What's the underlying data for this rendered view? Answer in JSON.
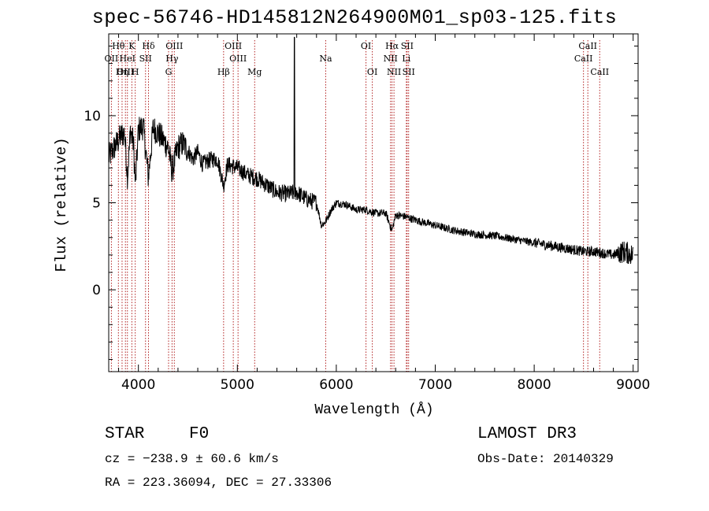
{
  "chart_data": {
    "type": "line",
    "title": "spec-56746-HD145812N264900M01_sp03-125.fits",
    "xlabel": "Wavelength (Å)",
    "ylabel": "Flux (relative)",
    "xlim": [
      3700,
      9050
    ],
    "ylim": [
      -4.7,
      14.7
    ],
    "xticks": [
      4000,
      5000,
      6000,
      7000,
      8000,
      9000
    ],
    "xtick_labels": [
      "4000",
      "5000",
      "6000",
      "7000",
      "8000",
      "9000"
    ],
    "yticks": [
      0,
      5,
      10
    ],
    "ytick_labels": [
      "0",
      "5",
      "10"
    ],
    "series": [
      {
        "name": "spectrum",
        "x": [
          3700,
          3760,
          3800,
          3830,
          3860,
          3890,
          3920,
          3950,
          3970,
          4000,
          4050,
          4100,
          4150,
          4200,
          4250,
          4300,
          4340,
          4400,
          4450,
          4500,
          4550,
          4600,
          4650,
          4700,
          4750,
          4800,
          4861,
          4900,
          4950,
          5000,
          5100,
          5200,
          5300,
          5400,
          5500,
          5600,
          5700,
          5800,
          5850,
          5890,
          5950,
          6000,
          6100,
          6200,
          6300,
          6400,
          6500,
          6563,
          6600,
          6700,
          6800,
          7000,
          7200,
          7400,
          7600,
          7800,
          7900,
          8000,
          8100,
          8200,
          8300,
          8400,
          8500,
          8600,
          8700,
          8800,
          8900,
          9000
        ],
        "values": [
          7.6,
          8.2,
          8.6,
          8.9,
          9.0,
          6.5,
          9.2,
          8.4,
          6.0,
          9.2,
          9.4,
          6.5,
          9.3,
          9.0,
          8.6,
          8.2,
          6.8,
          8.2,
          8.4,
          8.0,
          7.5,
          7.9,
          7.2,
          7.4,
          7.5,
          7.5,
          6.0,
          7.2,
          7.1,
          7.0,
          6.6,
          6.4,
          6.0,
          5.6,
          5.5,
          5.6,
          5.2,
          5.0,
          3.7,
          3.9,
          4.6,
          5.0,
          4.9,
          4.6,
          4.6,
          4.4,
          4.4,
          3.4,
          4.3,
          4.2,
          4.0,
          3.7,
          3.4,
          3.2,
          3.1,
          2.9,
          2.8,
          2.7,
          2.6,
          2.5,
          2.4,
          2.3,
          2.2,
          2.2,
          2.1,
          2.0,
          2.2,
          2.0
        ]
      }
    ],
    "lines": [
      {
        "label": "Hθ",
        "wl": 3798,
        "row": 1
      },
      {
        "label": "K",
        "wl": 3934,
        "row": 1
      },
      {
        "label": "Hδ",
        "wl": 4102,
        "row": 1
      },
      {
        "label": "OIII",
        "wl": 4363,
        "row": 1
      },
      {
        "label": "OIII",
        "wl": 4959,
        "row": 1
      },
      {
        "label": "OI",
        "wl": 6300,
        "row": 1
      },
      {
        "label": "Hα",
        "wl": 6563,
        "row": 1
      },
      {
        "label": "SII",
        "wl": 6716,
        "row": 1
      },
      {
        "label": "CaII",
        "wl": 8542,
        "row": 1
      },
      {
        "label": "OII",
        "wl": 3727,
        "row": 2
      },
      {
        "label": "HeI",
        "wl": 3889,
        "row": 2
      },
      {
        "label": "SII",
        "wl": 4072,
        "row": 2
      },
      {
        "label": "Hγ",
        "wl": 4340,
        "row": 2
      },
      {
        "label": "OIII",
        "wl": 5007,
        "row": 2
      },
      {
        "label": "Na",
        "wl": 5893,
        "row": 2
      },
      {
        "label": "NII",
        "wl": 6548,
        "row": 2
      },
      {
        "label": "Li",
        "wl": 6708,
        "row": 2
      },
      {
        "label": "CaII",
        "wl": 8498,
        "row": 2
      },
      {
        "label": "OIII",
        "wl": 3869,
        "row": 3
      },
      {
        "label": "Hη",
        "wl": 3835,
        "row": 3
      },
      {
        "label": "H",
        "wl": 3968,
        "row": 3
      },
      {
        "label": "G",
        "wl": 4305,
        "row": 3
      },
      {
        "label": "Hβ",
        "wl": 4861,
        "row": 3
      },
      {
        "label": "Mg",
        "wl": 5175,
        "row": 3
      },
      {
        "label": "OI",
        "wl": 6364,
        "row": 3
      },
      {
        "label": "NII",
        "wl": 6583,
        "row": 3
      },
      {
        "label": "SII",
        "wl": 6731,
        "row": 3
      },
      {
        "label": "CaII",
        "wl": 8662,
        "row": 3
      }
    ]
  },
  "info": {
    "object_class": "STAR",
    "subclass": "F0",
    "survey": "LAMOST DR3",
    "cz": "cz = −238.9 ± 60.6 km/s",
    "obs_date": "Obs-Date: 20140329",
    "coords": "RA = 223.36094, DEC =  27.33306"
  },
  "colors": {
    "spectrum": "#000000",
    "line_markers": "#b22222"
  }
}
